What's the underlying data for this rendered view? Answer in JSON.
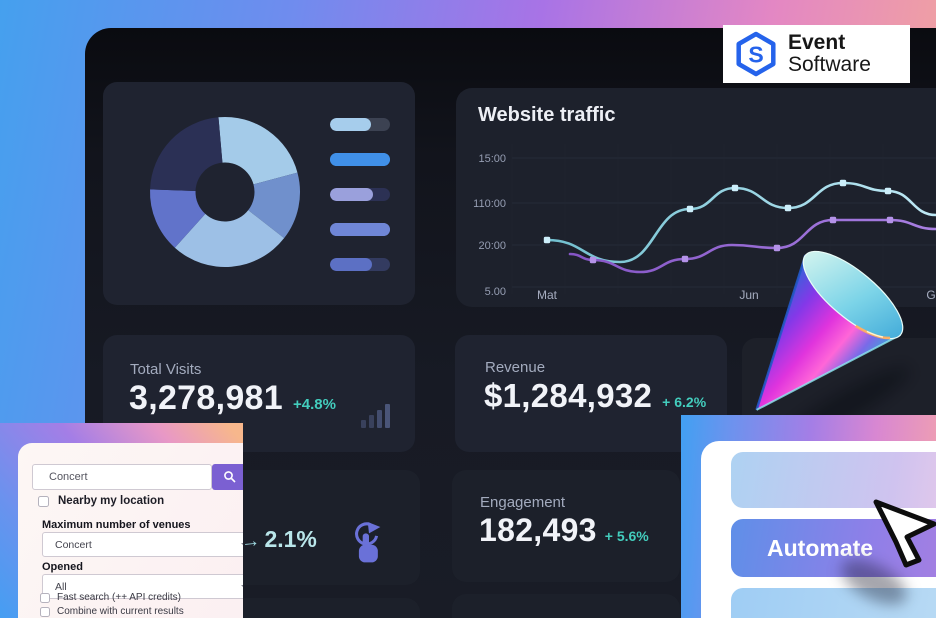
{
  "logo": {
    "name_line1": "Event",
    "name_line2": "Software"
  },
  "stats": {
    "total_visits": {
      "label": "Total Visits",
      "value": "3,278,981",
      "delta": "+4.8%"
    },
    "revenue": {
      "label": "Revenue",
      "value": "$1,284,932",
      "delta": "+ 6.2%"
    },
    "engagement": {
      "label": "Engagement",
      "value": "182,493",
      "delta": "+ 5.6%"
    }
  },
  "mini_stat": {
    "value": "2.1%"
  },
  "search_form": {
    "query_value": "Concert",
    "nearby_label": "Nearby my location",
    "max_venues_label": "Maximum number of venues",
    "max_venues_value": "Concert",
    "opened_label": "Opened",
    "opened_value": "All",
    "fast_search_label": "Fast search (++ API credits)",
    "combine_label": "Combine with current results"
  },
  "automate_panel": {
    "button_label": "Automate"
  },
  "colors": {
    "accent_teal": "#43cdbd",
    "line_blue": "#7ecde2",
    "line_purple": "#8d5fc9",
    "search_button_purple": "#7b60d2",
    "logo_blue": "#2563eb"
  },
  "chart_data": [
    {
      "type": "line",
      "title": "Website traffic",
      "y_ticks": [
        "15:00",
        "110:00",
        "20:00",
        "5.00"
      ],
      "x_ticks": [
        "Mat",
        "Jun",
        "G"
      ],
      "grid": true,
      "legend_position": "none",
      "series": [
        {
          "name": "traffic-blue",
          "color": "#7ecde2",
          "marker_color": "#cdeffb",
          "points": [
            [
              91,
              152
            ],
            [
              164,
              174
            ],
            [
              234,
              121
            ],
            [
              279,
              100
            ],
            [
              332,
              120
            ],
            [
              387,
              95
            ],
            [
              432,
              103
            ],
            [
              480,
              127
            ]
          ],
          "marker_indices": [
            0,
            2,
            3,
            4,
            5,
            6
          ]
        },
        {
          "name": "traffic-purple",
          "color": "#8d5fc9",
          "marker_color": "#b492e8",
          "points": [
            [
              114,
              166
            ],
            [
              137,
              172
            ],
            [
              184,
              184
            ],
            [
              229,
              171
            ],
            [
              276,
              157
            ],
            [
              321,
              160
            ],
            [
              377,
              132
            ],
            [
              434,
              132
            ],
            [
              480,
              141
            ]
          ],
          "marker_indices": [
            1,
            3,
            5,
            6,
            7
          ]
        }
      ]
    },
    {
      "type": "pie",
      "style": "donut",
      "slices": [
        {
          "name": "slice-sky",
          "color": "#a4cbe9",
          "start_deg": -5,
          "end_deg": 75,
          "pct": 22
        },
        {
          "name": "slice-medium-blue",
          "color": "#7090cc",
          "start_deg": 75,
          "end_deg": 128,
          "pct": 15
        },
        {
          "name": "slice-light-blue",
          "color": "#9dc0e6",
          "start_deg": 128,
          "end_deg": 222,
          "pct": 26
        },
        {
          "name": "slice-periwinkle",
          "color": "#6173ca",
          "start_deg": 222,
          "end_deg": 272,
          "pct": 14
        },
        {
          "name": "slice-dark-navy",
          "color": "#2b3055",
          "start_deg": 272,
          "end_deg": 355,
          "pct": 23
        }
      ]
    },
    {
      "type": "bar",
      "orientation": "horizontal",
      "style": "legend-pills",
      "bars": [
        {
          "color": "#a6cdec",
          "track": "#3c4252",
          "pct": 68
        },
        {
          "color": "#4090e8",
          "track": "#4090e8",
          "pct": 100
        },
        {
          "color": "#9aa0dc",
          "track": "#2c3154",
          "pct": 72
        },
        {
          "color": "#6f86d6",
          "track": "#6f86d6",
          "pct": 100
        },
        {
          "color": "#5c70c4",
          "track": "#333b60",
          "pct": 70
        }
      ]
    }
  ]
}
